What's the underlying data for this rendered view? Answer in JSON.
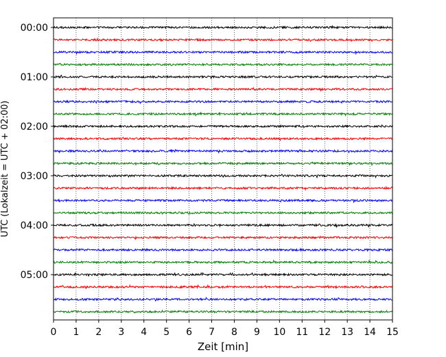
{
  "chart_data": {
    "type": "line",
    "title": "",
    "xlabel": "Zeit  [min]",
    "ylabel": "UTC (Lokalzeit = UTC + 02:00)",
    "xlim": [
      0,
      15
    ],
    "xticks": [
      "0",
      "1",
      "2",
      "3",
      "4",
      "5",
      "6",
      "7",
      "8",
      "9",
      "10",
      "11",
      "12",
      "13",
      "14",
      "15"
    ],
    "yticks": [
      "00:00",
      "01:00",
      "02:00",
      "03:00",
      "04:00",
      "05:00"
    ],
    "row_interval_min": 15,
    "row_count": 24,
    "color_cycle": [
      "#000000",
      "#ff0000",
      "#0000ff",
      "#008000"
    ],
    "vertical_grid": true,
    "grid_style": "dotted"
  }
}
